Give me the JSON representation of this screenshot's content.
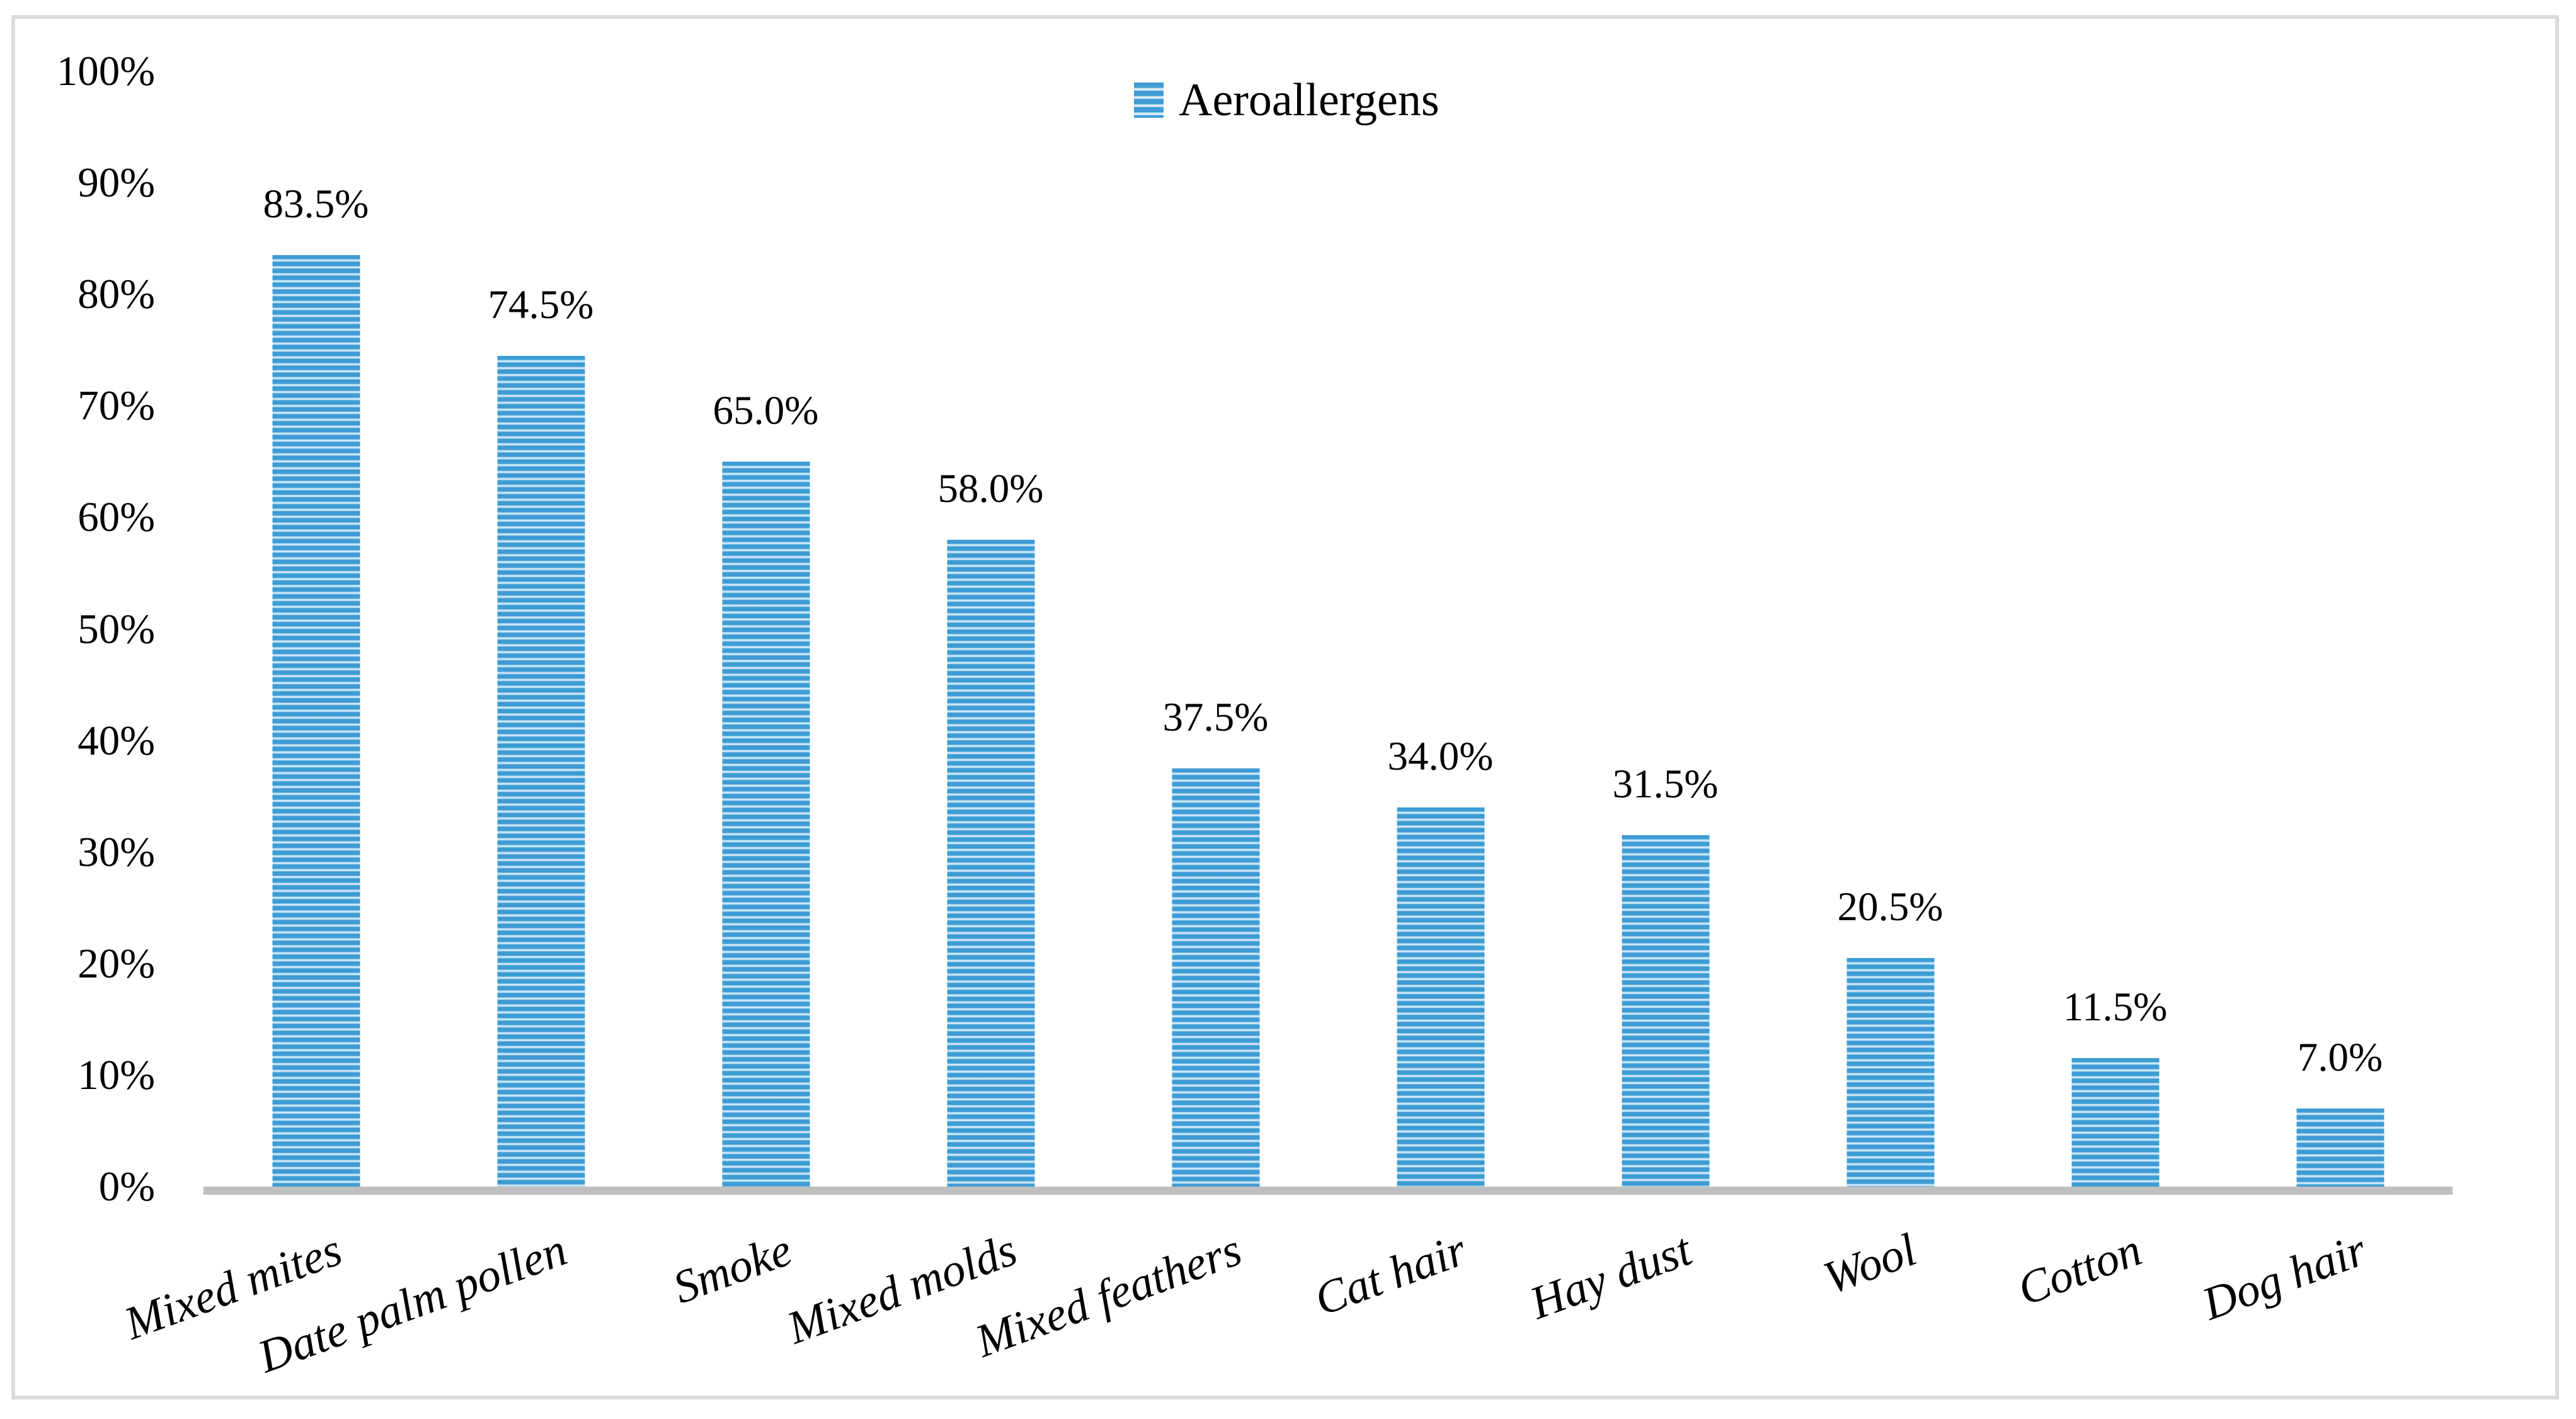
{
  "figure": {
    "background_color": "#FFFFFF",
    "border_color": "#DBDBDB",
    "text_color": "#000000"
  },
  "legend": {
    "label": "Aeroallergens",
    "position": "top-center",
    "swatch_style": "horizontal-stripes",
    "swatch_dark_color": "#3F9CD6",
    "swatch_light_color": "#E2F1FB"
  },
  "axes": {
    "y_tick_labels": [
      "0%",
      "10%",
      "20%",
      "30%",
      "40%",
      "50%",
      "60%",
      "70%",
      "80%",
      "90%",
      "100%"
    ],
    "axis_line_color": "#BFBFBF",
    "gridlines": "off"
  },
  "chart_data": {
    "type": "bar",
    "title": "",
    "xlabel": "",
    "ylabel": "",
    "ylim": [
      0,
      100
    ],
    "y_tick_step": 10,
    "y_tick_format": "percent",
    "grid": false,
    "legend_entries": [
      "Aeroallergens"
    ],
    "legend_position": "top-center",
    "bar_fill_style": "horizontal-stripes",
    "bar_stripe_dark_color": "#3E9CD4",
    "bar_stripe_light_color": "#DDEFFA",
    "categories": [
      "Mixed mites",
      "Date palm pollen",
      "Smoke",
      "Mixed molds",
      "Mixed feathers",
      "Cat hair",
      "Hay dust",
      "Wool",
      "Cotton",
      "Dog hair"
    ],
    "values": [
      83.5,
      74.5,
      65.0,
      58.0,
      37.5,
      34.0,
      31.5,
      20.5,
      11.5,
      7.0
    ],
    "data_labels": [
      "83.5%",
      "74.5%",
      "65.0%",
      "58.0%",
      "37.5%",
      "34.0%",
      "31.5%",
      "20.5%",
      "11.5%",
      "7.0%"
    ]
  }
}
